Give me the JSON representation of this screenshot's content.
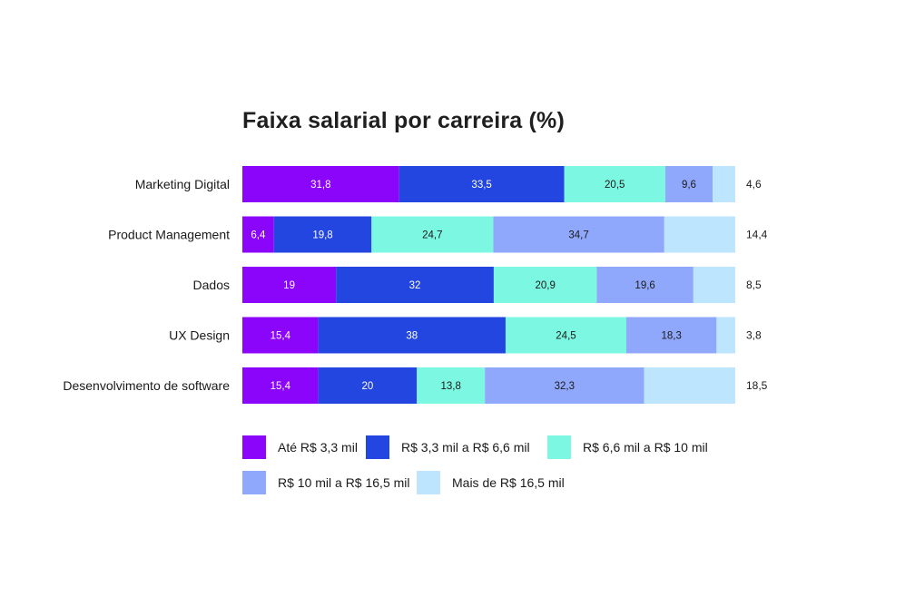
{
  "chart_data": {
    "type": "bar",
    "orientation": "horizontal",
    "stacked": true,
    "title": "Faixa salarial por carreira (%)",
    "categories": [
      "Marketing Digital",
      "Product Management",
      "Dados",
      "UX Design",
      "Desenvolvimento de software"
    ],
    "series": [
      {
        "name": "Até R$ 3,3 mil",
        "color": "#8c05fb",
        "label_color": "#ffffff",
        "values": [
          31.8,
          6.4,
          19,
          15.4,
          15.4
        ]
      },
      {
        "name": "R$ 3,3 mil a R$ 6,6 mil",
        "color": "#2345e0",
        "label_color": "#ffffff",
        "values": [
          33.5,
          19.8,
          32,
          38,
          20
        ]
      },
      {
        "name": "R$ 6,6 mil a R$ 10 mil",
        "color": "#7cf7e1",
        "label_color": "#1a1a1a",
        "values": [
          20.5,
          24.7,
          20.9,
          24.5,
          13.8
        ]
      },
      {
        "name": "R$ 10 mil a R$ 16,5 mil",
        "color": "#90a8fb",
        "label_color": "#1a1a1a",
        "values": [
          9.6,
          34.7,
          19.6,
          18.3,
          32.3
        ]
      },
      {
        "name": "Mais de R$ 16,5 mil",
        "color": "#bde5fd",
        "label_color": "#1a1a1a",
        "values": [
          4.6,
          14.4,
          8.5,
          3.8,
          18.5
        ]
      }
    ],
    "value_display": {
      "Marketing Digital": [
        "31,8",
        "33,5",
        "20,5",
        "9,6",
        "4,6"
      ],
      "Product Management": [
        "6,4",
        "19,8",
        "24,7",
        "34,7",
        "14,4"
      ],
      "Dados": [
        "19",
        "32",
        "20,9",
        "19,6",
        "8,5"
      ],
      "UX Design": [
        "15,4",
        "38",
        "24,5",
        "18,3",
        "3,8"
      ],
      "Desenvolvimento de software": [
        "15,4",
        "20",
        "13,8",
        "32,3",
        "18,5"
      ]
    },
    "last_series_labels_outside": true,
    "xlim": [
      0,
      100
    ],
    "grid": false,
    "legend_position": "bottom"
  }
}
